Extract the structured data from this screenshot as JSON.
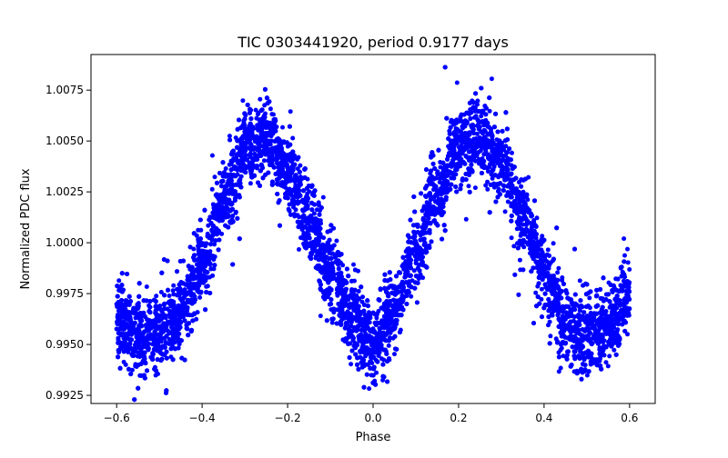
{
  "chart_data": {
    "type": "scatter",
    "title": "TIC 0303441920, period 0.9177 days",
    "xlabel": "Phase",
    "ylabel": "Normalized PDC flux",
    "xlim": [
      -0.66,
      0.66
    ],
    "ylim": [
      0.9921,
      1.00925
    ],
    "xticks": [
      -0.6,
      -0.4,
      -0.2,
      0.0,
      0.2,
      0.4,
      0.6
    ],
    "xtick_labels": [
      "−0.6",
      "−0.4",
      "−0.2",
      "0.0",
      "0.2",
      "0.4",
      "0.6"
    ],
    "yticks": [
      0.9925,
      0.995,
      0.9975,
      1.0,
      1.0025,
      1.005,
      1.0075
    ],
    "ytick_labels": [
      "0.9925",
      "0.9950",
      "0.9975",
      "1.0000",
      "1.0025",
      "1.0050",
      "1.0075"
    ],
    "grid": false,
    "marker_color": "#0000ff",
    "series": [
      {
        "name": "flux",
        "description_model": "phase-folded light curve, points densely distributed",
        "x_range": [
          -0.6,
          0.6
        ],
        "profile_phase": [
          -0.6,
          -0.55,
          -0.5,
          -0.45,
          -0.4,
          -0.35,
          -0.3,
          -0.25,
          -0.2,
          -0.15,
          -0.1,
          -0.05,
          0.0,
          0.05,
          0.1,
          0.15,
          0.2,
          0.25,
          0.3,
          0.35,
          0.4,
          0.45,
          0.5,
          0.55,
          0.6
        ],
        "profile_flux": [
          0.9963,
          0.9955,
          0.9955,
          0.9965,
          0.999,
          1.002,
          1.0045,
          1.005,
          1.0035,
          1.001,
          0.9985,
          0.9963,
          0.995,
          0.9965,
          0.9995,
          1.0025,
          1.0048,
          1.0052,
          1.004,
          1.0013,
          0.9985,
          0.996,
          0.9952,
          0.9958,
          0.9975
        ],
        "scatter_sigma": 0.0011,
        "n_points": 9000
      }
    ]
  }
}
